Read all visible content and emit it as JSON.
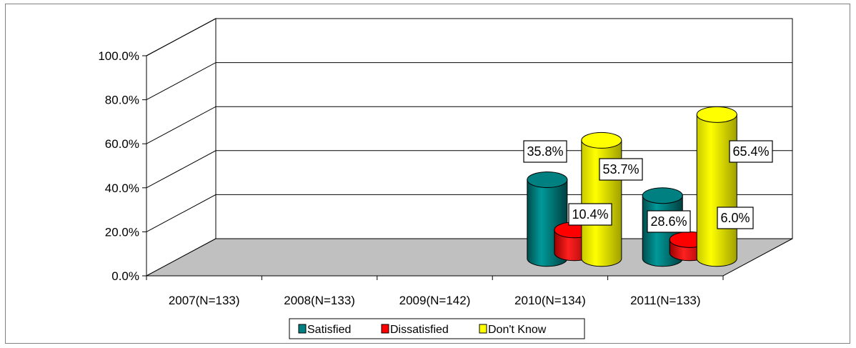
{
  "chart_data": {
    "type": "bar",
    "style": "3d-cylinder",
    "categories": [
      "2007(N=133)",
      "2008(N=133)",
      "2009(N=142)",
      "2010(N=134)",
      "2011(N=133)"
    ],
    "series": [
      {
        "name": "Satisfied",
        "color": "#008080",
        "values": [
          null,
          null,
          null,
          35.8,
          28.6
        ]
      },
      {
        "name": "Dissatisfied",
        "color": "#ff0000",
        "values": [
          null,
          null,
          null,
          10.4,
          6.0
        ]
      },
      {
        "name": "Don't Know",
        "color": "#ffff00",
        "values": [
          null,
          null,
          null,
          53.7,
          65.4
        ]
      }
    ],
    "data_labels": [
      {
        "category": "2010(N=134)",
        "series": "Satisfied",
        "text": "35.8%"
      },
      {
        "category": "2010(N=134)",
        "series": "Dissatisfied",
        "text": "10.4%"
      },
      {
        "category": "2010(N=134)",
        "series": "Don't Know",
        "text": "53.7%"
      },
      {
        "category": "2011(N=133)",
        "series": "Satisfied",
        "text": "28.6%"
      },
      {
        "category": "2011(N=133)",
        "series": "Dissatisfied",
        "text": "6.0%"
      },
      {
        "category": "2011(N=133)",
        "series": "Don't Know",
        "text": "65.4%"
      }
    ],
    "y_ticks": [
      "0.0%",
      "20.0%",
      "40.0%",
      "60.0%",
      "80.0%",
      "100.0%"
    ],
    "ylim": [
      0,
      100
    ],
    "grid": true,
    "floor_color": "#c0c0c0",
    "legend_position": "bottom"
  }
}
